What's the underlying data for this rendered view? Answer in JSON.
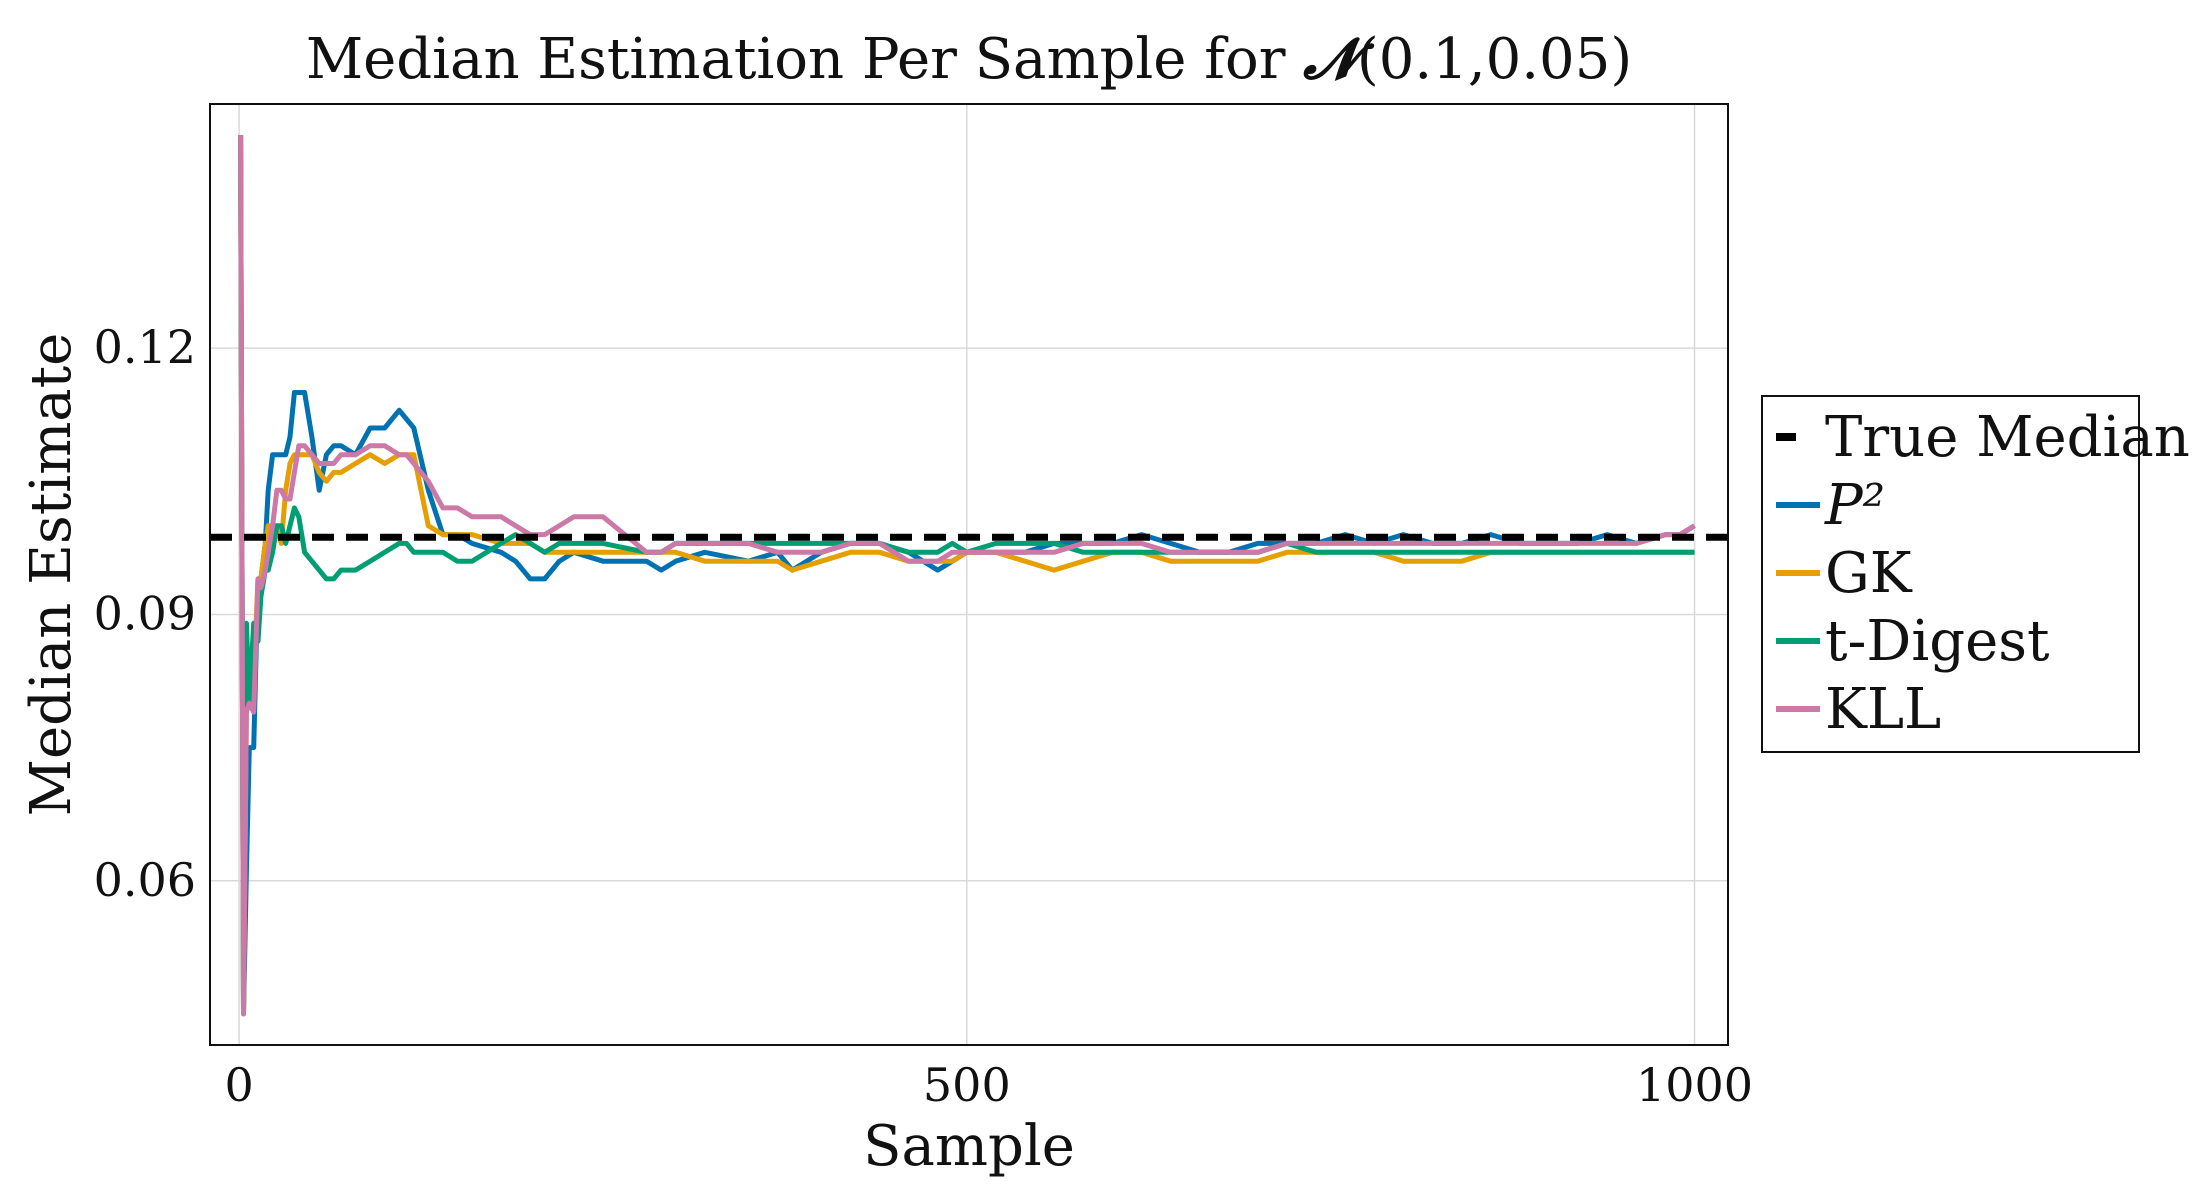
{
  "chart_data": {
    "type": "line",
    "title_text": "Median Estimation Per Sample for ",
    "title_symbol": "𝓝",
    "title_params": "(0.1,0.05)",
    "xlabel": "Sample",
    "ylabel": "Median Estimate",
    "xlim": [
      -20,
      1023
    ],
    "ylim": [
      0.0415,
      0.1475
    ],
    "xticks": [
      0,
      500,
      1000
    ],
    "xtick_labels": [
      "0",
      "500",
      "1000"
    ],
    "yticks": [
      0.06,
      0.09,
      0.12
    ],
    "ytick_labels": [
      "0.06",
      "0.09",
      "0.12"
    ],
    "grid": true,
    "legend_position": "right, outside plot",
    "reference_line": {
      "name": "True Median",
      "y": 0.0987,
      "color": "#000000",
      "style": "dashed"
    },
    "series": [
      {
        "name": "P²",
        "color": "#0072b2",
        "x": [
          1,
          3,
          5,
          7,
          10,
          13,
          15,
          18,
          20,
          23,
          26,
          29,
          32,
          35,
          38,
          41,
          45,
          50,
          55,
          60,
          65,
          70,
          80,
          90,
          100,
          110,
          115,
          120,
          130,
          140,
          150,
          160,
          180,
          190,
          200,
          210,
          220,
          230,
          250,
          280,
          290,
          300,
          320,
          350,
          370,
          380,
          400,
          420,
          440,
          460,
          470,
          480,
          490,
          500,
          520,
          540,
          560,
          580,
          600,
          620,
          640,
          660,
          680,
          700,
          720,
          740,
          760,
          780,
          800,
          820,
          840,
          860,
          880,
          900,
          920,
          940,
          960,
          980,
          990,
          1000
        ],
        "y": [
          0.144,
          0.045,
          0.061,
          0.075,
          0.075,
          0.094,
          0.094,
          0.098,
          0.104,
          0.108,
          0.108,
          0.108,
          0.108,
          0.11,
          0.115,
          0.115,
          0.115,
          0.11,
          0.104,
          0.108,
          0.109,
          0.109,
          0.108,
          0.111,
          0.111,
          0.113,
          0.112,
          0.111,
          0.104,
          0.099,
          0.099,
          0.098,
          0.097,
          0.096,
          0.094,
          0.094,
          0.096,
          0.097,
          0.096,
          0.096,
          0.095,
          0.096,
          0.097,
          0.096,
          0.097,
          0.095,
          0.097,
          0.098,
          0.098,
          0.097,
          0.096,
          0.095,
          0.096,
          0.097,
          0.097,
          0.097,
          0.098,
          0.098,
          0.098,
          0.099,
          0.098,
          0.097,
          0.097,
          0.098,
          0.098,
          0.098,
          0.099,
          0.098,
          0.099,
          0.098,
          0.098,
          0.099,
          0.098,
          0.098,
          0.098,
          0.099,
          0.098,
          0.099,
          0.099,
          0.1
        ]
      },
      {
        "name": "GK",
        "color": "#e69f00",
        "x": [
          1,
          3,
          5,
          7,
          10,
          13,
          15,
          18,
          20,
          23,
          26,
          29,
          32,
          35,
          38,
          41,
          45,
          50,
          55,
          60,
          65,
          70,
          80,
          90,
          100,
          110,
          115,
          120,
          130,
          140,
          150,
          160,
          180,
          190,
          200,
          210,
          220,
          230,
          250,
          280,
          290,
          300,
          320,
          350,
          370,
          380,
          400,
          420,
          440,
          460,
          470,
          480,
          490,
          500,
          520,
          540,
          560,
          580,
          600,
          620,
          640,
          660,
          680,
          700,
          720,
          740,
          760,
          780,
          800,
          820,
          840,
          860,
          880,
          900,
          920,
          940,
          960,
          980,
          990,
          1000
        ],
        "y": [
          0.144,
          0.045,
          0.079,
          0.083,
          0.083,
          0.094,
          0.094,
          0.098,
          0.1,
          0.1,
          0.1,
          0.098,
          0.104,
          0.107,
          0.108,
          0.108,
          0.108,
          0.108,
          0.106,
          0.105,
          0.106,
          0.106,
          0.107,
          0.108,
          0.107,
          0.108,
          0.108,
          0.108,
          0.1,
          0.099,
          0.099,
          0.099,
          0.098,
          0.098,
          0.098,
          0.097,
          0.097,
          0.097,
          0.097,
          0.097,
          0.097,
          0.097,
          0.096,
          0.096,
          0.096,
          0.095,
          0.096,
          0.097,
          0.097,
          0.096,
          0.096,
          0.096,
          0.096,
          0.097,
          0.097,
          0.096,
          0.095,
          0.096,
          0.097,
          0.097,
          0.096,
          0.096,
          0.096,
          0.096,
          0.097,
          0.097,
          0.097,
          0.097,
          0.096,
          0.096,
          0.096,
          0.097,
          0.097,
          0.097,
          0.097,
          0.097,
          0.097,
          0.097,
          0.097,
          0.097
        ]
      },
      {
        "name": "t-Digest",
        "color": "#009e73",
        "x": [
          1,
          3,
          5,
          7,
          10,
          13,
          15,
          18,
          20,
          23,
          26,
          29,
          32,
          35,
          38,
          41,
          45,
          50,
          55,
          60,
          65,
          70,
          80,
          90,
          100,
          110,
          115,
          120,
          130,
          140,
          150,
          160,
          180,
          190,
          200,
          210,
          220,
          230,
          250,
          280,
          290,
          300,
          320,
          350,
          370,
          380,
          400,
          420,
          440,
          460,
          470,
          480,
          490,
          500,
          520,
          540,
          560,
          580,
          600,
          620,
          640,
          660,
          680,
          700,
          720,
          740,
          760,
          780,
          800,
          820,
          840,
          860,
          880,
          900,
          920,
          940,
          960,
          980,
          990,
          1000
        ],
        "y": [
          0.144,
          0.045,
          0.089,
          0.08,
          0.089,
          0.087,
          0.092,
          0.095,
          0.095,
          0.097,
          0.1,
          0.1,
          0.098,
          0.1,
          0.102,
          0.101,
          0.097,
          0.096,
          0.095,
          0.094,
          0.094,
          0.095,
          0.095,
          0.096,
          0.097,
          0.098,
          0.098,
          0.097,
          0.097,
          0.097,
          0.096,
          0.096,
          0.098,
          0.099,
          0.098,
          0.097,
          0.098,
          0.098,
          0.098,
          0.097,
          0.097,
          0.098,
          0.098,
          0.098,
          0.098,
          0.098,
          0.098,
          0.098,
          0.098,
          0.097,
          0.097,
          0.097,
          0.098,
          0.097,
          0.098,
          0.098,
          0.098,
          0.097,
          0.097,
          0.097,
          0.097,
          0.097,
          0.097,
          0.097,
          0.098,
          0.097,
          0.097,
          0.097,
          0.097,
          0.097,
          0.097,
          0.097,
          0.097,
          0.097,
          0.097,
          0.097,
          0.097,
          0.097,
          0.097,
          0.097
        ]
      },
      {
        "name": "KLL",
        "color": "#cc79a7",
        "x": [
          1,
          3,
          5,
          7,
          10,
          13,
          15,
          18,
          20,
          23,
          26,
          29,
          32,
          35,
          38,
          41,
          45,
          50,
          55,
          60,
          65,
          70,
          80,
          90,
          100,
          110,
          115,
          120,
          130,
          140,
          150,
          160,
          180,
          190,
          200,
          210,
          220,
          230,
          250,
          280,
          290,
          300,
          320,
          350,
          370,
          380,
          400,
          420,
          440,
          460,
          470,
          480,
          490,
          500,
          520,
          540,
          560,
          580,
          600,
          620,
          640,
          660,
          680,
          700,
          720,
          740,
          760,
          780,
          800,
          820,
          840,
          860,
          880,
          900,
          920,
          940,
          960,
          980,
          990,
          1000
        ],
        "y": [
          0.144,
          0.045,
          0.079,
          0.08,
          0.079,
          0.094,
          0.093,
          0.095,
          0.097,
          0.1,
          0.104,
          0.104,
          0.103,
          0.103,
          0.106,
          0.109,
          0.109,
          0.108,
          0.107,
          0.107,
          0.107,
          0.108,
          0.108,
          0.109,
          0.109,
          0.108,
          0.108,
          0.107,
          0.105,
          0.102,
          0.102,
          0.101,
          0.101,
          0.1,
          0.099,
          0.099,
          0.1,
          0.101,
          0.101,
          0.097,
          0.097,
          0.098,
          0.098,
          0.098,
          0.097,
          0.097,
          0.097,
          0.098,
          0.098,
          0.096,
          0.096,
          0.096,
          0.097,
          0.097,
          0.097,
          0.097,
          0.097,
          0.098,
          0.098,
          0.098,
          0.097,
          0.097,
          0.097,
          0.097,
          0.098,
          0.098,
          0.098,
          0.098,
          0.098,
          0.098,
          0.098,
          0.098,
          0.098,
          0.098,
          0.098,
          0.098,
          0.098,
          0.099,
          0.099,
          0.1
        ]
      }
    ]
  }
}
